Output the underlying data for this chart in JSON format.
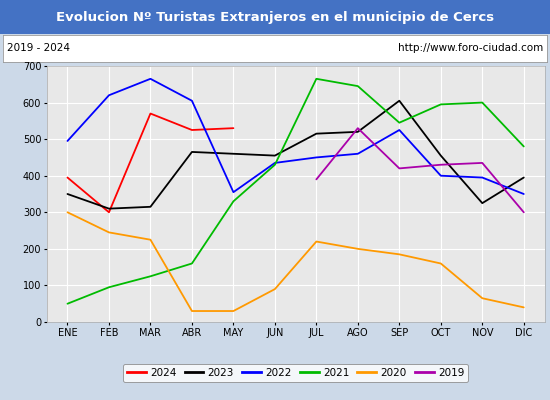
{
  "title": "Evolucion Nº Turistas Extranjeros en el municipio de Cercs",
  "subtitle_left": "2019 - 2024",
  "subtitle_right": "http://www.foro-ciudad.com",
  "x_labels": [
    "ENE",
    "FEB",
    "MAR",
    "ABR",
    "MAY",
    "JUN",
    "JUL",
    "AGO",
    "SEP",
    "OCT",
    "NOV",
    "DIC"
  ],
  "ylim": [
    0,
    700
  ],
  "yticks": [
    0,
    100,
    200,
    300,
    400,
    500,
    600,
    700
  ],
  "series": {
    "2024": {
      "color": "#ff0000",
      "values": [
        395,
        300,
        570,
        525,
        530,
        null,
        null,
        null,
        null,
        null,
        null,
        null
      ]
    },
    "2023": {
      "color": "#000000",
      "values": [
        350,
        310,
        315,
        465,
        460,
        455,
        515,
        520,
        605,
        455,
        325,
        395
      ]
    },
    "2022": {
      "color": "#0000ff",
      "values": [
        495,
        620,
        665,
        605,
        355,
        435,
        450,
        460,
        525,
        400,
        395,
        350
      ]
    },
    "2021": {
      "color": "#00bb00",
      "values": [
        50,
        95,
        125,
        160,
        330,
        430,
        665,
        645,
        545,
        595,
        600,
        480
      ]
    },
    "2020": {
      "color": "#ff9900",
      "values": [
        300,
        245,
        225,
        30,
        30,
        90,
        220,
        200,
        185,
        160,
        65,
        40
      ]
    },
    "2019": {
      "color": "#aa00aa",
      "values": [
        null,
        null,
        null,
        null,
        null,
        null,
        390,
        530,
        420,
        430,
        435,
        300
      ]
    }
  },
  "title_bg_color": "#4472c4",
  "title_text_color": "#ffffff",
  "plot_bg_color": "#e8e8e8",
  "outer_bg_color": "#ccd9e8",
  "grid_color": "#ffffff",
  "subtitle_box_color": "#ffffff",
  "legend_order": [
    "2024",
    "2023",
    "2022",
    "2021",
    "2020",
    "2019"
  ],
  "title_fontsize": 9.5,
  "subtitle_fontsize": 7.5,
  "tick_fontsize": 7,
  "legend_fontsize": 7.5
}
